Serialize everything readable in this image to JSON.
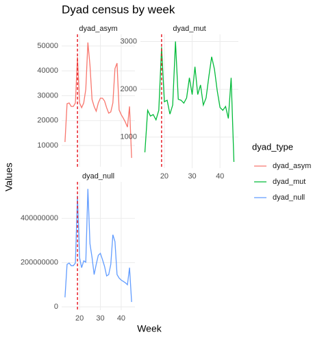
{
  "title": "Dyad census by week",
  "x_label": "Week",
  "y_label": "Values",
  "legend_title": "dyad_type",
  "vline_color": "#e8202a",
  "chart_data": [
    {
      "type": "line",
      "name": "dyad_asym",
      "color": "#F8766D",
      "x": [
        13,
        14,
        15,
        16,
        17,
        18,
        19,
        20,
        21,
        22,
        23,
        24,
        25,
        26,
        27,
        28,
        29,
        30,
        31,
        32,
        33,
        34,
        35,
        36,
        37,
        38,
        39,
        40,
        41,
        42,
        43,
        44,
        45
      ],
      "values": [
        11400,
        26800,
        27100,
        25700,
        25700,
        27100,
        45600,
        27100,
        25200,
        27100,
        32600,
        51400,
        42300,
        28500,
        25700,
        23800,
        27100,
        29000,
        29000,
        27900,
        25200,
        23000,
        23500,
        27100,
        40900,
        43100,
        24300,
        22400,
        21000,
        19400,
        17400,
        25700,
        5000
      ],
      "xlim": [
        11.4,
        46.6
      ],
      "ylim": [
        1450,
        54700
      ],
      "xticks": [
        20,
        30,
        40
      ],
      "yticks": [
        10000,
        20000,
        30000,
        40000,
        50000
      ],
      "vline": 19,
      "grid": true
    },
    {
      "type": "line",
      "name": "dyad_mut",
      "color": "#00BA38",
      "x": [
        13,
        14,
        15,
        16,
        17,
        18,
        19,
        20,
        21,
        22,
        23,
        24,
        25,
        26,
        27,
        28,
        29,
        30,
        31,
        32,
        33,
        34,
        35,
        36,
        37,
        38,
        39,
        40,
        41,
        42,
        43,
        44,
        45
      ],
      "values": [
        680,
        1560,
        1440,
        1470,
        1360,
        1560,
        2880,
        1740,
        1770,
        1480,
        1670,
        3000,
        1790,
        1770,
        1710,
        1820,
        2240,
        1890,
        2470,
        1890,
        2090,
        1670,
        1820,
        2270,
        2680,
        2420,
        1970,
        1620,
        1560,
        1640,
        1390,
        2240,
        480
      ],
      "xlim": [
        11.4,
        46.6
      ],
      "ylim": [
        350,
        3150
      ],
      "xticks": [
        20,
        30,
        40
      ],
      "yticks": [
        1000,
        2000,
        3000
      ],
      "vline": 19,
      "grid": true
    },
    {
      "type": "line",
      "name": "dyad_null",
      "color": "#619CFF",
      "x": [
        13,
        14,
        15,
        16,
        17,
        18,
        19,
        20,
        21,
        22,
        23,
        24,
        25,
        26,
        27,
        28,
        29,
        30,
        31,
        32,
        33,
        34,
        35,
        36,
        37,
        38,
        39,
        40,
        41,
        42,
        43,
        44,
        45
      ],
      "values": [
        43000000,
        192000000,
        198000000,
        186000000,
        186000000,
        198000000,
        502000000,
        223000000,
        177000000,
        208000000,
        202000000,
        533000000,
        285000000,
        223000000,
        146000000,
        192000000,
        233000000,
        242000000,
        214000000,
        183000000,
        140000000,
        146000000,
        192000000,
        326000000,
        295000000,
        146000000,
        130000000,
        121000000,
        115000000,
        109000000,
        100000000,
        177000000,
        22000000
      ],
      "xlim": [
        11.4,
        46.6
      ],
      "ylim": [
        -15000000,
        565000000
      ],
      "xticks": [
        20,
        30,
        40
      ],
      "yticks": [
        0,
        200000000,
        400000000
      ],
      "vline": 19,
      "grid": true
    }
  ]
}
